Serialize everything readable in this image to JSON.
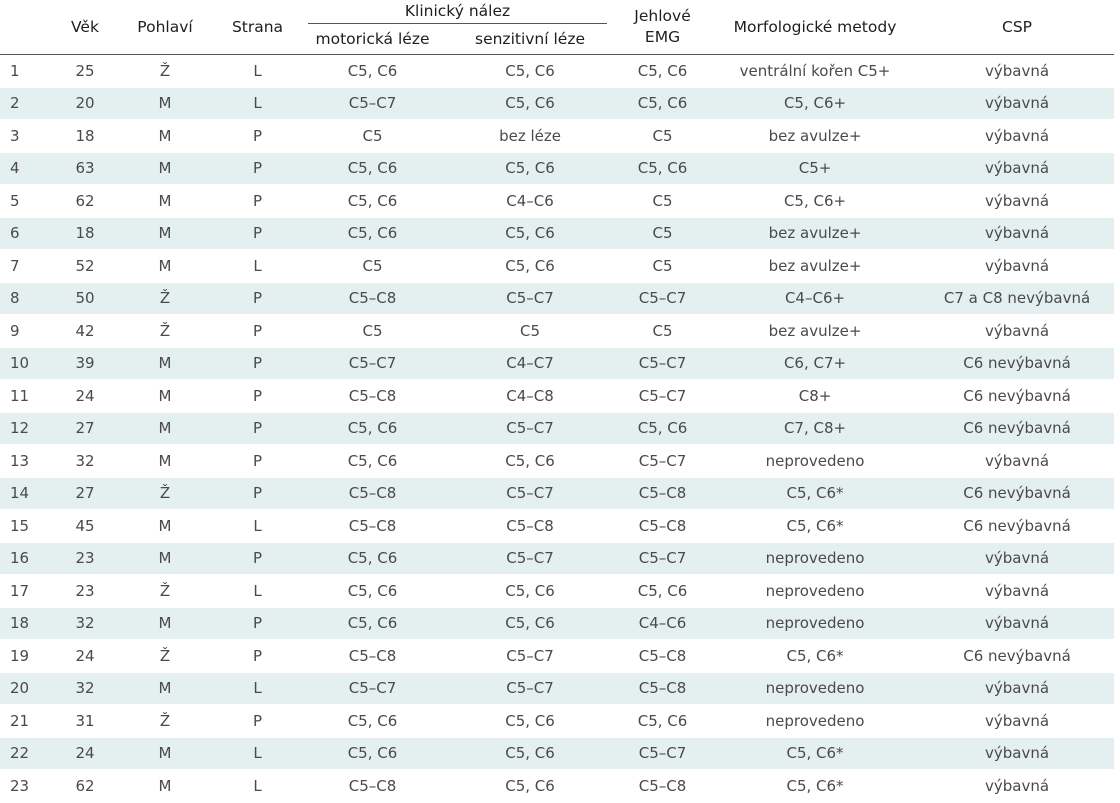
{
  "headers": {
    "number": "",
    "age": "Věk",
    "sex": "Pohlaví",
    "side": "Strana",
    "clinical_group": "Klinický nález",
    "motor": "motorická léze",
    "sensory": "senzitivní léze",
    "emg_line1": "Jehlové",
    "emg_line2": "EMG",
    "morph": "Morfologické metody",
    "csp": "CSP"
  },
  "rows": [
    {
      "n": "1",
      "age": "25",
      "sex": "Ž",
      "side": "L",
      "motor": "C5, C6",
      "sensory": "C5, C6",
      "emg": "C5, C6",
      "morph": "ventrální kořen C5+",
      "csp": "výbavná"
    },
    {
      "n": "2",
      "age": "20",
      "sex": "M",
      "side": "L",
      "motor": "C5–C7",
      "sensory": "C5, C6",
      "emg": "C5, C6",
      "morph": "C5, C6+",
      "csp": "výbavná"
    },
    {
      "n": "3",
      "age": "18",
      "sex": "M",
      "side": "P",
      "motor": "C5",
      "sensory": "bez léze",
      "emg": "C5",
      "morph": "bez avulze+",
      "csp": "výbavná"
    },
    {
      "n": "4",
      "age": "63",
      "sex": "M",
      "side": "P",
      "motor": "C5, C6",
      "sensory": "C5, C6",
      "emg": "C5, C6",
      "morph": "C5+",
      "csp": "výbavná"
    },
    {
      "n": "5",
      "age": "62",
      "sex": "M",
      "side": "P",
      "motor": "C5, C6",
      "sensory": "C4–C6",
      "emg": "C5",
      "morph": "C5, C6+",
      "csp": "výbavná"
    },
    {
      "n": "6",
      "age": "18",
      "sex": "M",
      "side": "P",
      "motor": "C5, C6",
      "sensory": "C5, C6",
      "emg": "C5",
      "morph": "bez avulze+",
      "csp": "výbavná"
    },
    {
      "n": "7",
      "age": "52",
      "sex": "M",
      "side": "L",
      "motor": "C5",
      "sensory": "C5, C6",
      "emg": "C5",
      "morph": "bez avulze+",
      "csp": "výbavná"
    },
    {
      "n": "8",
      "age": "50",
      "sex": "Ž",
      "side": "P",
      "motor": "C5–C8",
      "sensory": "C5–C7",
      "emg": "C5–C7",
      "morph": "C4–C6+",
      "csp": "C7 a C8 nevýbavná"
    },
    {
      "n": "9",
      "age": "42",
      "sex": "Ž",
      "side": "P",
      "motor": "C5",
      "sensory": "C5",
      "emg": "C5",
      "morph": "bez avulze+",
      "csp": "výbavná"
    },
    {
      "n": "10",
      "age": "39",
      "sex": "M",
      "side": "P",
      "motor": "C5–C7",
      "sensory": "C4–C7",
      "emg": "C5–C7",
      "morph": "C6, C7+",
      "csp": "C6 nevýbavná"
    },
    {
      "n": "11",
      "age": "24",
      "sex": "M",
      "side": "P",
      "motor": "C5–C8",
      "sensory": "C4–C8",
      "emg": "C5–C7",
      "morph": "C8+",
      "csp": "C6 nevýbavná"
    },
    {
      "n": "12",
      "age": "27",
      "sex": "M",
      "side": "P",
      "motor": "C5, C6",
      "sensory": "C5–C7",
      "emg": "C5, C6",
      "morph": "C7, C8+",
      "csp": "C6 nevýbavná"
    },
    {
      "n": "13",
      "age": "32",
      "sex": "M",
      "side": "P",
      "motor": "C5, C6",
      "sensory": "C5, C6",
      "emg": "C5–C7",
      "morph": "neprovedeno",
      "csp": "výbavná"
    },
    {
      "n": "14",
      "age": "27",
      "sex": "Ž",
      "side": "P",
      "motor": "C5–C8",
      "sensory": "C5–C7",
      "emg": "C5–C8",
      "morph": "C5, C6*",
      "csp": "C6 nevýbavná"
    },
    {
      "n": "15",
      "age": "45",
      "sex": "M",
      "side": "L",
      "motor": "C5–C8",
      "sensory": "C5–C8",
      "emg": "C5–C8",
      "morph": "C5, C6*",
      "csp": "C6 nevýbavná"
    },
    {
      "n": "16",
      "age": "23",
      "sex": "M",
      "side": "P",
      "motor": "C5, C6",
      "sensory": "C5–C7",
      "emg": "C5–C7",
      "morph": "neprovedeno",
      "csp": "výbavná"
    },
    {
      "n": "17",
      "age": "23",
      "sex": "Ž",
      "side": "L",
      "motor": "C5, C6",
      "sensory": "C5, C6",
      "emg": "C5, C6",
      "morph": "neprovedeno",
      "csp": "výbavná"
    },
    {
      "n": "18",
      "age": "32",
      "sex": "M",
      "side": "P",
      "motor": "C5, C6",
      "sensory": "C5, C6",
      "emg": "C4–C6",
      "morph": "neprovedeno",
      "csp": "výbavná"
    },
    {
      "n": "19",
      "age": "24",
      "sex": "Ž",
      "side": "P",
      "motor": "C5–C8",
      "sensory": "C5–C7",
      "emg": "C5–C8",
      "morph": "C5, C6*",
      "csp": "C6 nevýbavná"
    },
    {
      "n": "20",
      "age": "32",
      "sex": "M",
      "side": "L",
      "motor": "C5–C7",
      "sensory": "C5–C7",
      "emg": "C5–C8",
      "morph": "neprovedeno",
      "csp": "výbavná"
    },
    {
      "n": "21",
      "age": "31",
      "sex": "Ž",
      "side": "P",
      "motor": "C5, C6",
      "sensory": "C5, C6",
      "emg": "C5, C6",
      "morph": "neprovedeno",
      "csp": "výbavná"
    },
    {
      "n": "22",
      "age": "24",
      "sex": "M",
      "side": "L",
      "motor": "C5, C6",
      "sensory": "C5, C6",
      "emg": "C5–C7",
      "morph": "C5, C6*",
      "csp": "výbavná"
    },
    {
      "n": "23",
      "age": "62",
      "sex": "M",
      "side": "L",
      "motor": "C5–C8",
      "sensory": "C5, C6",
      "emg": "C5–C8",
      "morph": "C5, C6*",
      "csp": "výbavná"
    }
  ],
  "colors": {
    "stripe": "#e4f0ef",
    "text": "#4a4a4a",
    "header_text": "#1e1e1e",
    "rule": "#555555"
  }
}
